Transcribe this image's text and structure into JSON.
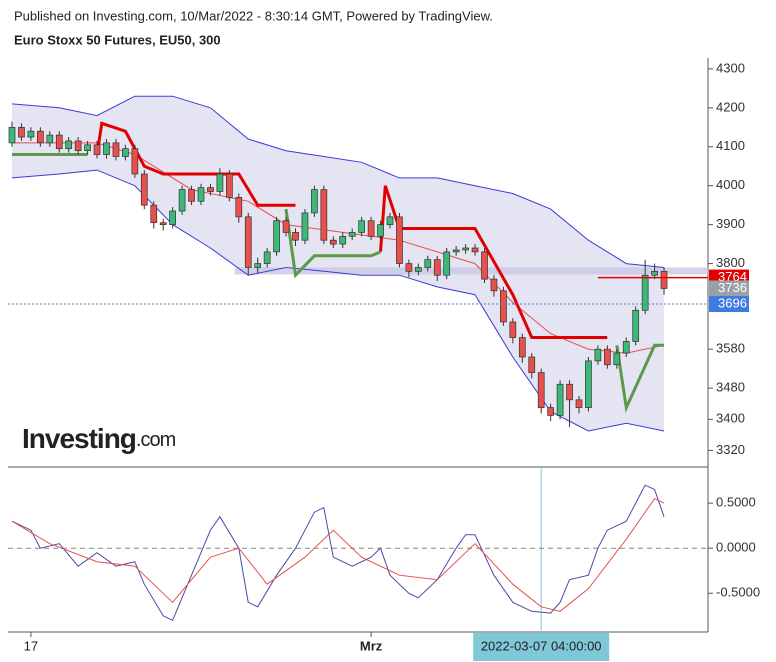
{
  "header": {
    "published": "Published on Investing.com, 10/Mar/2022 - 8:30:14 GMT, Powered by TradingView.",
    "logo": "Investing",
    "logo_suffix": ".com"
  },
  "chart_data": [
    {
      "type": "candlestick",
      "title": "Euro Stoxx 50 Futures, EU50, 300",
      "open": [
        4110,
        4150,
        4125,
        4140,
        4110,
        4130,
        4095,
        4115,
        4090,
        4105,
        4080,
        4110,
        4075,
        4095,
        4030,
        3950,
        3905,
        3900,
        3935,
        3990,
        3960,
        3995,
        3985,
        4030,
        3970,
        3920,
        3790,
        3800,
        3830,
        3910,
        3880,
        3860,
        3930,
        3990,
        3860,
        3850,
        3870,
        3880,
        3910,
        3870,
        3900,
        3920,
        3800,
        3780,
        3790,
        3810,
        3770,
        3830,
        3835,
        3840,
        3830,
        3760,
        3730,
        3650,
        3610,
        3560,
        3520,
        3430,
        3410,
        3490,
        3450,
        3430,
        3550,
        3580,
        3540,
        3570,
        3600,
        3680,
        3770,
        3780
      ],
      "high": [
        4165,
        4160,
        4150,
        4150,
        4140,
        4140,
        4125,
        4125,
        4115,
        4115,
        4120,
        4120,
        4105,
        4105,
        4040,
        3960,
        3915,
        3945,
        4000,
        4000,
        4005,
        4005,
        4045,
        4040,
        3980,
        3930,
        3815,
        3840,
        3920,
        3920,
        3890,
        3940,
        4000,
        4000,
        3870,
        3880,
        3890,
        3920,
        3920,
        3910,
        3930,
        3930,
        3810,
        3800,
        3820,
        3820,
        3840,
        3845,
        3850,
        3850,
        3840,
        3770,
        3740,
        3660,
        3620,
        3570,
        3530,
        3440,
        3500,
        3500,
        3460,
        3560,
        3590,
        3590,
        3580,
        3610,
        3690,
        3810,
        3800,
        3790
      ],
      "low": [
        4100,
        4115,
        4115,
        4100,
        4100,
        4085,
        4085,
        4080,
        4080,
        4070,
        4070,
        4065,
        4065,
        4020,
        3940,
        3890,
        3885,
        3890,
        3925,
        3950,
        3950,
        3975,
        3975,
        3960,
        3905,
        3770,
        3775,
        3790,
        3820,
        3870,
        3845,
        3850,
        3920,
        3850,
        3840,
        3840,
        3860,
        3870,
        3860,
        3860,
        3890,
        3790,
        3765,
        3770,
        3780,
        3755,
        3760,
        3820,
        3825,
        3820,
        3750,
        3715,
        3640,
        3595,
        3545,
        3505,
        3415,
        3395,
        3400,
        3380,
        3415,
        3420,
        3540,
        3530,
        3530,
        3560,
        3590,
        3670,
        3760,
        3720
      ],
      "close": [
        4150,
        4125,
        4140,
        4110,
        4130,
        4095,
        4115,
        4090,
        4105,
        4080,
        4110,
        4075,
        4095,
        4030,
        3950,
        3905,
        3900,
        3935,
        3990,
        3960,
        3995,
        3985,
        4030,
        3970,
        3920,
        3790,
        3800,
        3830,
        3910,
        3880,
        3860,
        3930,
        3990,
        3860,
        3850,
        3870,
        3880,
        3910,
        3870,
        3900,
        3920,
        3800,
        3780,
        3790,
        3810,
        3770,
        3830,
        3835,
        3840,
        3830,
        3760,
        3730,
        3650,
        3610,
        3560,
        3520,
        3430,
        3410,
        3490,
        3450,
        3430,
        3550,
        3580,
        3540,
        3570,
        3600,
        3680,
        3770,
        3780,
        3736
      ],
      "up_color": "#3cb878",
      "down_color": "#e8504d",
      "band": {
        "color": "#3b3bd6",
        "fill": "#e4e4f2",
        "x": [
          0,
          5,
          9,
          13,
          17,
          21,
          25,
          29,
          33,
          37,
          41,
          45,
          49,
          53,
          57,
          61,
          65,
          69
        ],
        "upper": [
          4210,
          4200,
          4180,
          4230,
          4230,
          4200,
          4120,
          4090,
          4075,
          4060,
          4020,
          4020,
          4000,
          3980,
          3940,
          3860,
          3800,
          3790
        ],
        "lower": [
          4020,
          4030,
          4040,
          4000,
          3900,
          3840,
          3770,
          3790,
          3780,
          3770,
          3770,
          3740,
          3720,
          3560,
          3420,
          3370,
          3390,
          3370
        ]
      },
      "lines": [
        {
          "color": "#e8504d",
          "width": 1,
          "x": [
            0,
            9,
            13,
            19,
            25,
            29,
            35,
            41,
            45,
            49,
            53,
            57,
            61,
            65,
            69
          ],
          "values": [
            4110,
            4110,
            4080,
            3990,
            3960,
            3900,
            3880,
            3860,
            3830,
            3800,
            3700,
            3620,
            3580,
            3570,
            3590
          ]
        },
        {
          "color": "#e00000",
          "width": 3,
          "x": [
            9,
            9.5,
            12,
            14,
            16,
            24,
            26,
            30,
            null,
            39,
            39.5,
            41,
            49,
            53,
            55,
            63
          ],
          "values": [
            4080,
            4160,
            4140,
            4050,
            4030,
            4030,
            3950,
            3950,
            null,
            3830,
            4000,
            3890,
            3890,
            3720,
            3610,
            3610
          ]
        },
        {
          "color": "#5a9a4a",
          "width": 3,
          "x": [
            0,
            8,
            null,
            29,
            30,
            32,
            38,
            39,
            null,
            64,
            65,
            68,
            69
          ],
          "values": [
            4080,
            4080,
            null,
            3940,
            3770,
            3820,
            3820,
            3830,
            null,
            3590,
            3430,
            3590,
            3590
          ]
        }
      ],
      "zone": {
        "from": 24,
        "low": 3772,
        "high": 3790,
        "color": "#c8c8e6"
      },
      "price_labels": [
        {
          "value": 3764,
          "color": "#e00000"
        },
        {
          "value": 3736,
          "color": "#9aa0a8"
        },
        {
          "value": 3696,
          "color": "#3d7be0"
        }
      ],
      "ylim": [
        3280,
        4328
      ],
      "yticks": [
        4300,
        4200,
        4100,
        4000,
        3900,
        3800,
        3580,
        3480,
        3400,
        3320
      ],
      "xlabels": [
        {
          "index": 2,
          "label": "17"
        },
        {
          "index": 38,
          "label": "Mrz"
        }
      ],
      "crosshair": {
        "index": 56,
        "label": "2022-03-07 04:00:00"
      }
    },
    {
      "type": "line",
      "series": [
        {
          "color": "#4a4aa8",
          "x": [
            0,
            2,
            3,
            5,
            7,
            9,
            11,
            13,
            14,
            16,
            17,
            19,
            21,
            22,
            24,
            25,
            26,
            28,
            30,
            32,
            33,
            34,
            36,
            38,
            39,
            40,
            42,
            43,
            45,
            47,
            48,
            49,
            51,
            53,
            55,
            57,
            58,
            59,
            61,
            62,
            63,
            65,
            67,
            68,
            69
          ],
          "values": [
            0.3,
            0.2,
            0.0,
            0.05,
            -0.2,
            -0.05,
            -0.2,
            -0.15,
            -0.4,
            -0.75,
            -0.8,
            -0.3,
            0.2,
            0.35,
            0.0,
            -0.6,
            -0.65,
            -0.3,
            0.0,
            0.4,
            0.45,
            -0.1,
            -0.2,
            -0.1,
            0.0,
            -0.3,
            -0.5,
            -0.55,
            -0.35,
            0.0,
            0.15,
            0.15,
            -0.3,
            -0.6,
            -0.7,
            -0.72,
            -0.6,
            -0.35,
            -0.3,
            0.0,
            0.2,
            0.3,
            0.7,
            0.65,
            0.35
          ]
        },
        {
          "color": "#e8504d",
          "x": [
            0,
            4,
            9,
            13,
            17,
            21,
            24,
            27,
            31,
            34,
            37,
            41,
            45,
            49,
            53,
            56,
            58,
            61,
            65,
            68,
            69
          ],
          "values": [
            0.3,
            0.05,
            -0.15,
            -0.2,
            -0.6,
            -0.1,
            0.0,
            -0.4,
            -0.1,
            0.2,
            -0.1,
            -0.3,
            -0.35,
            0.05,
            -0.4,
            -0.65,
            -0.7,
            -0.45,
            0.1,
            0.55,
            0.5
          ]
        }
      ],
      "ylim": [
        -0.93,
        0.89
      ],
      "yticks": [
        {
          "value": 0.5,
          "label": "0.5000"
        },
        {
          "value": 0,
          "label": "0.0000"
        },
        {
          "value": -0.5,
          "label": "-0.5000"
        }
      ],
      "zero_line": 0
    }
  ]
}
